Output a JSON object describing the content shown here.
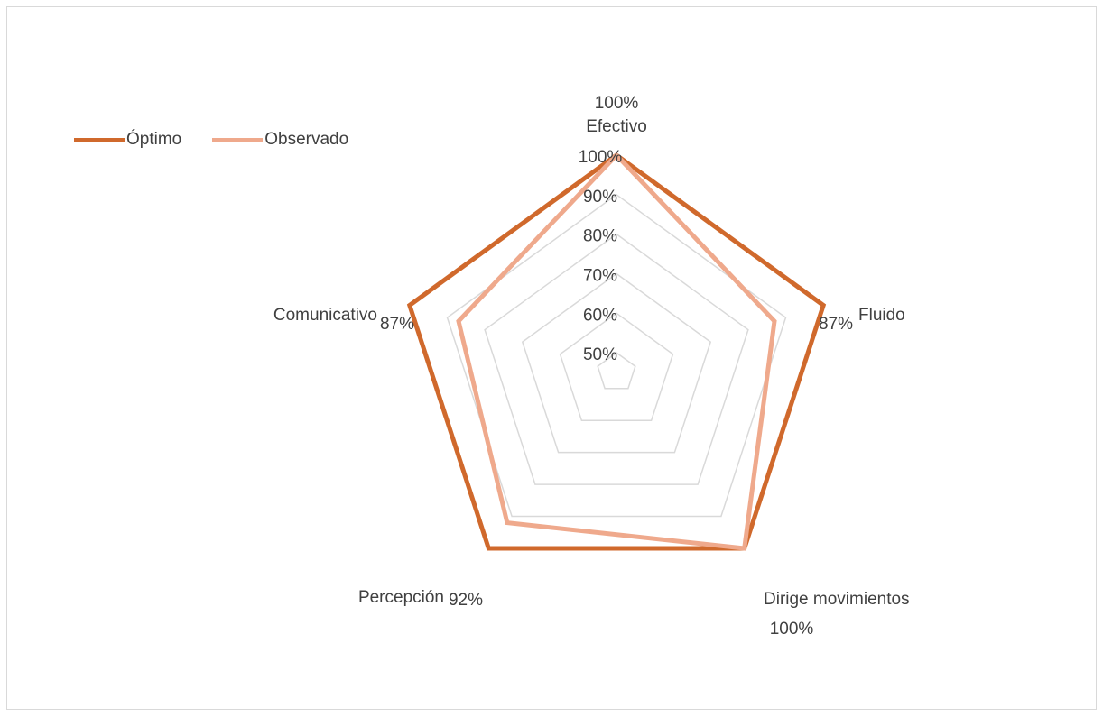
{
  "chart_data": {
    "type": "radar",
    "axes": [
      "Efectivo",
      "Fluido",
      "Dirige movimientos",
      "Percepción",
      "Comunicativo"
    ],
    "rmin": 0.45,
    "rmax": 1.0,
    "tick_labels": [
      "50%",
      "60%",
      "70%",
      "80%",
      "90%",
      "100%"
    ],
    "grid_levels": [
      0.5,
      0.6,
      0.7,
      0.8,
      0.9,
      1.0
    ],
    "series": [
      {
        "name": "Óptimo",
        "values": [
          1.0,
          1.0,
          1.0,
          1.0,
          1.0
        ],
        "color": "#d0692c"
      },
      {
        "name": "Observado",
        "values": [
          1.0,
          0.87,
          1.0,
          0.92,
          0.87
        ],
        "color": "#efa98c"
      }
    ],
    "data_labels": [
      "100%",
      "87%",
      "100%",
      "92%",
      "87%"
    ],
    "legend_position": "top-left",
    "grid": true
  },
  "colors": {
    "grid": "#d9d9d9",
    "text": "#404040"
  }
}
